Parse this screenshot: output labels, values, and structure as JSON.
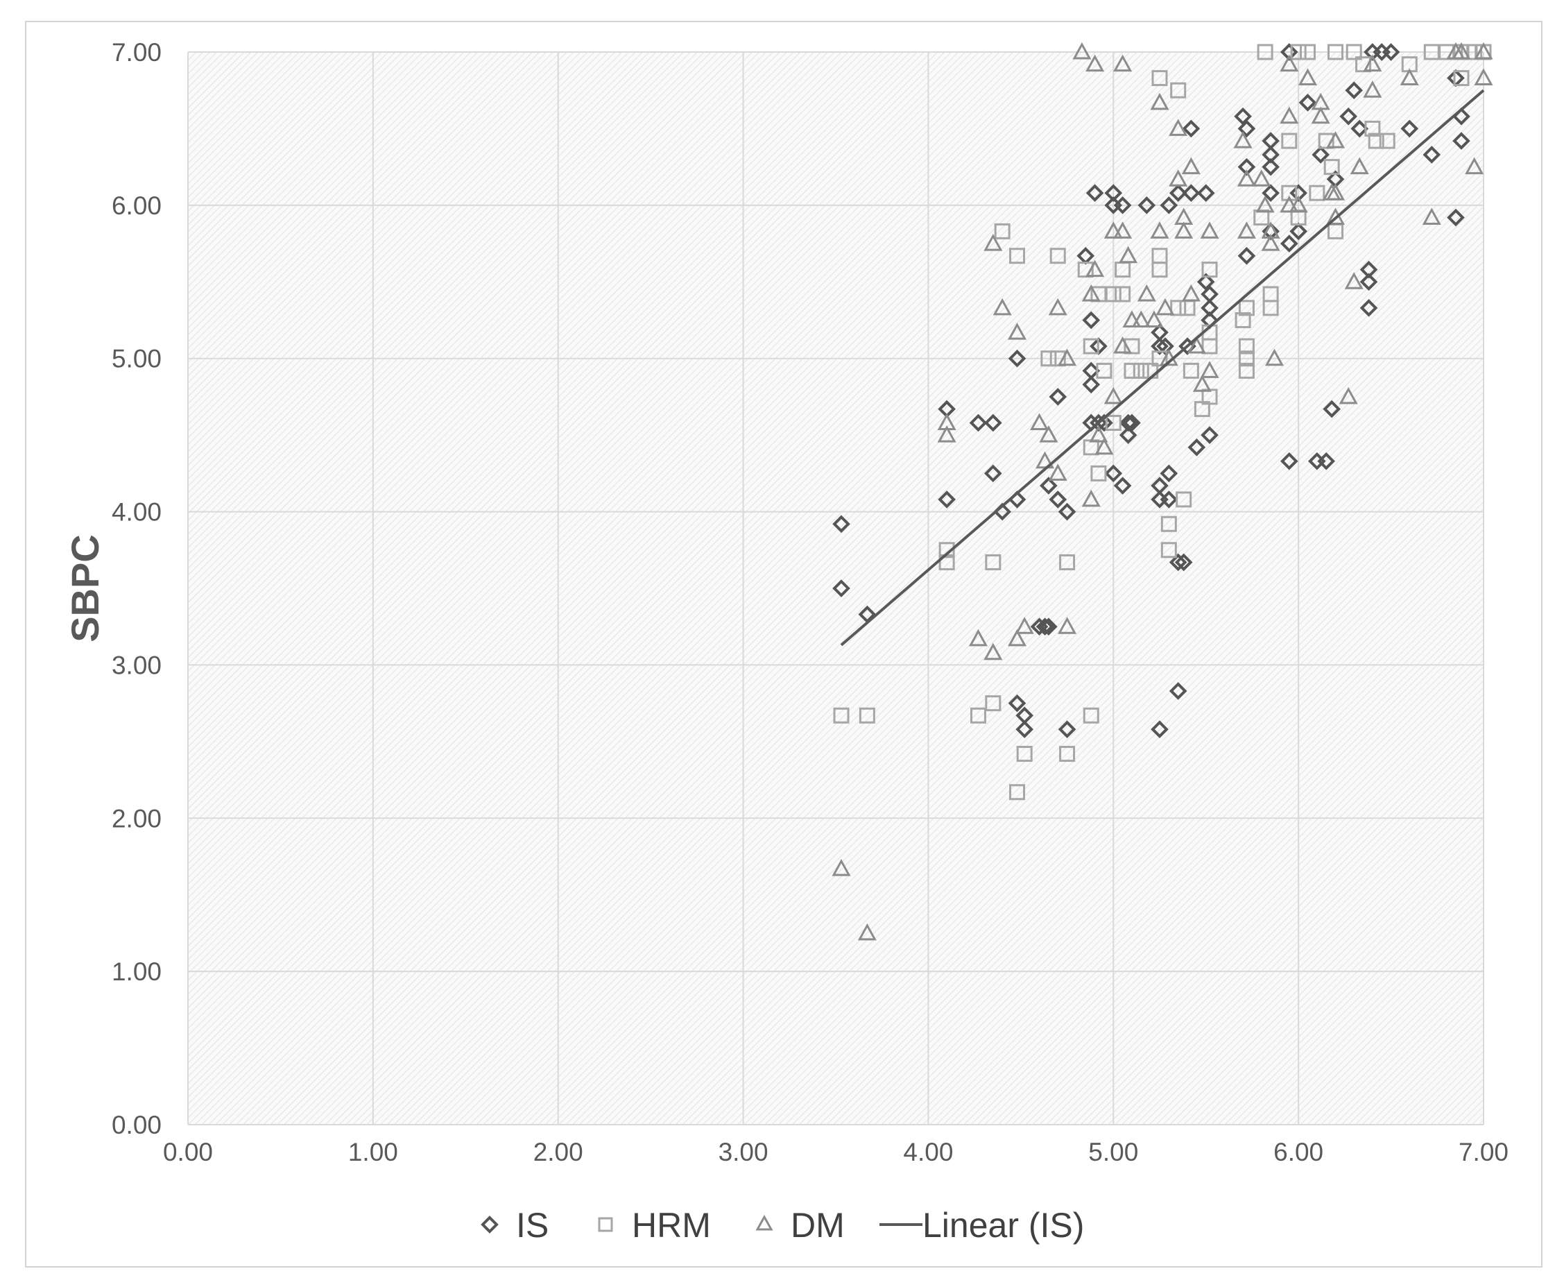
{
  "chart_data": {
    "type": "scatter",
    "title": "",
    "xlabel": "",
    "ylabel": "SBPC",
    "xlim": [
      0,
      7
    ],
    "ylim": [
      0,
      7
    ],
    "xticks": [
      "0.00",
      "1.00",
      "2.00",
      "3.00",
      "4.00",
      "5.00",
      "6.00",
      "7.00"
    ],
    "yticks": [
      "0.00",
      "1.00",
      "2.00",
      "3.00",
      "4.00",
      "5.00",
      "6.00",
      "7.00"
    ],
    "grid": true,
    "legend_position": "bottom",
    "series": [
      {
        "name": "IS",
        "marker": "diamond",
        "color": "#555555",
        "points": [
          [
            3.53,
            3.92
          ],
          [
            3.53,
            3.5
          ],
          [
            3.67,
            3.33
          ],
          [
            4.1,
            4.67
          ],
          [
            4.1,
            4.08
          ],
          [
            4.27,
            4.58
          ],
          [
            4.35,
            4.58
          ],
          [
            4.35,
            4.25
          ],
          [
            4.4,
            4.0
          ],
          [
            4.48,
            5.0
          ],
          [
            4.48,
            4.08
          ],
          [
            4.48,
            2.75
          ],
          [
            4.52,
            2.67
          ],
          [
            4.52,
            2.58
          ],
          [
            4.6,
            3.25
          ],
          [
            4.63,
            3.25
          ],
          [
            4.65,
            3.25
          ],
          [
            4.65,
            4.17
          ],
          [
            4.7,
            4.75
          ],
          [
            4.7,
            4.08
          ],
          [
            4.75,
            4.0
          ],
          [
            4.75,
            2.58
          ],
          [
            4.85,
            5.67
          ],
          [
            4.88,
            5.25
          ],
          [
            4.88,
            4.92
          ],
          [
            4.88,
            4.83
          ],
          [
            4.88,
            4.58
          ],
          [
            4.9,
            6.08
          ],
          [
            4.92,
            5.08
          ],
          [
            4.92,
            4.58
          ],
          [
            4.95,
            4.58
          ],
          [
            5.0,
            6.08
          ],
          [
            5.0,
            6.0
          ],
          [
            5.0,
            4.25
          ],
          [
            5.05,
            6.0
          ],
          [
            5.05,
            4.17
          ],
          [
            5.08,
            4.58
          ],
          [
            5.08,
            4.5
          ],
          [
            5.1,
            4.58
          ],
          [
            5.18,
            6.0
          ],
          [
            5.25,
            5.17
          ],
          [
            5.25,
            5.08
          ],
          [
            5.25,
            4.17
          ],
          [
            5.25,
            4.08
          ],
          [
            5.25,
            2.58
          ],
          [
            5.28,
            5.08
          ],
          [
            5.3,
            6.0
          ],
          [
            5.3,
            4.25
          ],
          [
            5.3,
            4.08
          ],
          [
            5.35,
            6.08
          ],
          [
            5.35,
            2.83
          ],
          [
            5.35,
            3.67
          ],
          [
            5.38,
            3.67
          ],
          [
            5.4,
            5.08
          ],
          [
            5.42,
            6.5
          ],
          [
            5.42,
            6.08
          ],
          [
            5.45,
            4.42
          ],
          [
            5.5,
            6.08
          ],
          [
            5.5,
            5.5
          ],
          [
            5.52,
            5.42
          ],
          [
            5.52,
            5.33
          ],
          [
            5.52,
            5.25
          ],
          [
            5.52,
            4.5
          ],
          [
            5.7,
            6.58
          ],
          [
            5.72,
            6.5
          ],
          [
            5.72,
            6.25
          ],
          [
            5.72,
            5.67
          ],
          [
            5.85,
            6.42
          ],
          [
            5.85,
            6.33
          ],
          [
            5.85,
            6.25
          ],
          [
            5.85,
            6.08
          ],
          [
            5.85,
            5.83
          ],
          [
            5.95,
            7.0
          ],
          [
            5.95,
            5.75
          ],
          [
            5.95,
            4.33
          ],
          [
            6.0,
            6.08
          ],
          [
            6.0,
            5.83
          ],
          [
            6.05,
            6.67
          ],
          [
            6.1,
            4.33
          ],
          [
            6.12,
            6.33
          ],
          [
            6.15,
            4.33
          ],
          [
            6.18,
            4.67
          ],
          [
            6.2,
            6.17
          ],
          [
            6.27,
            6.58
          ],
          [
            6.3,
            6.75
          ],
          [
            6.33,
            6.5
          ],
          [
            6.38,
            5.58
          ],
          [
            6.38,
            5.5
          ],
          [
            6.38,
            5.33
          ],
          [
            6.4,
            7.0
          ],
          [
            6.45,
            7.0
          ],
          [
            6.5,
            7.0
          ],
          [
            6.6,
            6.5
          ],
          [
            6.72,
            6.33
          ],
          [
            6.85,
            6.83
          ],
          [
            6.85,
            5.92
          ],
          [
            6.88,
            6.58
          ],
          [
            6.88,
            6.42
          ]
        ]
      },
      {
        "name": "HRM",
        "marker": "square",
        "color": "#a6a6a6",
        "points": [
          [
            3.53,
            2.67
          ],
          [
            3.67,
            2.67
          ],
          [
            4.1,
            3.75
          ],
          [
            4.1,
            3.67
          ],
          [
            4.27,
            2.67
          ],
          [
            4.35,
            3.67
          ],
          [
            4.35,
            2.75
          ],
          [
            4.4,
            5.83
          ],
          [
            4.48,
            5.67
          ],
          [
            4.48,
            2.17
          ],
          [
            4.52,
            2.42
          ],
          [
            4.65,
            5.0
          ],
          [
            4.7,
            5.67
          ],
          [
            4.7,
            5.0
          ],
          [
            4.75,
            3.67
          ],
          [
            4.75,
            2.42
          ],
          [
            4.85,
            5.58
          ],
          [
            4.88,
            5.08
          ],
          [
            4.88,
            2.67
          ],
          [
            4.88,
            4.42
          ],
          [
            4.92,
            4.25
          ],
          [
            4.92,
            5.42
          ],
          [
            4.95,
            4.92
          ],
          [
            5.0,
            5.42
          ],
          [
            5.0,
            4.58
          ],
          [
            5.05,
            5.58
          ],
          [
            5.05,
            5.42
          ],
          [
            5.1,
            5.08
          ],
          [
            5.1,
            4.92
          ],
          [
            5.15,
            4.92
          ],
          [
            5.2,
            4.92
          ],
          [
            5.25,
            6.83
          ],
          [
            5.25,
            5.67
          ],
          [
            5.25,
            5.58
          ],
          [
            5.25,
            5.0
          ],
          [
            5.3,
            3.92
          ],
          [
            5.3,
            3.75
          ],
          [
            5.35,
            6.75
          ],
          [
            5.35,
            5.33
          ],
          [
            5.38,
            4.08
          ],
          [
            5.4,
            5.33
          ],
          [
            5.42,
            4.92
          ],
          [
            5.48,
            4.67
          ],
          [
            5.52,
            5.58
          ],
          [
            5.52,
            5.17
          ],
          [
            5.52,
            5.08
          ],
          [
            5.52,
            4.75
          ],
          [
            5.7,
            5.25
          ],
          [
            5.72,
            5.33
          ],
          [
            5.72,
            5.08
          ],
          [
            5.72,
            5.0
          ],
          [
            5.72,
            4.92
          ],
          [
            5.8,
            5.92
          ],
          [
            5.82,
            7.0
          ],
          [
            5.85,
            5.42
          ],
          [
            5.85,
            5.33
          ],
          [
            5.95,
            6.42
          ],
          [
            5.95,
            6.08
          ],
          [
            6.0,
            7.0
          ],
          [
            6.0,
            5.92
          ],
          [
            6.05,
            7.0
          ],
          [
            6.1,
            6.08
          ],
          [
            6.15,
            6.42
          ],
          [
            6.18,
            6.25
          ],
          [
            6.2,
            5.83
          ],
          [
            6.2,
            7.0
          ],
          [
            6.3,
            7.0
          ],
          [
            6.35,
            6.92
          ],
          [
            6.4,
            6.5
          ],
          [
            6.42,
            6.42
          ],
          [
            6.48,
            6.42
          ],
          [
            6.6,
            6.92
          ],
          [
            6.72,
            7.0
          ],
          [
            6.8,
            7.0
          ],
          [
            6.88,
            7.0
          ],
          [
            6.88,
            6.83
          ],
          [
            6.92,
            7.0
          ],
          [
            6.95,
            7.0
          ],
          [
            7.0,
            7.0
          ]
        ]
      },
      {
        "name": "DM",
        "marker": "triangle",
        "color": "#8c8c8c",
        "points": [
          [
            3.53,
            1.67
          ],
          [
            3.67,
            1.25
          ],
          [
            4.1,
            4.58
          ],
          [
            4.1,
            4.5
          ],
          [
            4.27,
            3.17
          ],
          [
            4.35,
            3.08
          ],
          [
            4.35,
            5.75
          ],
          [
            4.4,
            5.33
          ],
          [
            4.48,
            5.17
          ],
          [
            4.48,
            3.17
          ],
          [
            4.52,
            3.25
          ],
          [
            4.6,
            4.58
          ],
          [
            4.63,
            4.33
          ],
          [
            4.65,
            4.5
          ],
          [
            4.7,
            5.33
          ],
          [
            4.7,
            4.25
          ],
          [
            4.75,
            5.0
          ],
          [
            4.75,
            3.25
          ],
          [
            4.83,
            7.0
          ],
          [
            4.88,
            5.42
          ],
          [
            4.88,
            4.08
          ],
          [
            4.9,
            6.92
          ],
          [
            4.9,
            5.58
          ],
          [
            4.92,
            4.5
          ],
          [
            4.95,
            4.42
          ],
          [
            5.0,
            5.83
          ],
          [
            5.0,
            4.75
          ],
          [
            5.05,
            6.92
          ],
          [
            5.05,
            5.83
          ],
          [
            5.05,
            5.08
          ],
          [
            5.08,
            5.67
          ],
          [
            5.1,
            5.25
          ],
          [
            5.15,
            5.25
          ],
          [
            5.18,
            5.42
          ],
          [
            5.22,
            5.25
          ],
          [
            5.25,
            6.67
          ],
          [
            5.25,
            5.83
          ],
          [
            5.28,
            5.33
          ],
          [
            5.3,
            5.0
          ],
          [
            5.35,
            6.5
          ],
          [
            5.35,
            6.17
          ],
          [
            5.38,
            5.83
          ],
          [
            5.38,
            5.92
          ],
          [
            5.42,
            6.25
          ],
          [
            5.42,
            5.42
          ],
          [
            5.45,
            5.08
          ],
          [
            5.48,
            4.83
          ],
          [
            5.52,
            5.83
          ],
          [
            5.52,
            4.92
          ],
          [
            5.7,
            6.42
          ],
          [
            5.72,
            6.17
          ],
          [
            5.72,
            5.83
          ],
          [
            5.8,
            6.17
          ],
          [
            5.82,
            6.0
          ],
          [
            5.85,
            5.83
          ],
          [
            5.85,
            5.75
          ],
          [
            5.87,
            5.0
          ],
          [
            5.95,
            6.92
          ],
          [
            5.95,
            6.58
          ],
          [
            5.95,
            6.0
          ],
          [
            6.0,
            6.0
          ],
          [
            6.05,
            6.83
          ],
          [
            6.12,
            6.67
          ],
          [
            6.12,
            6.58
          ],
          [
            6.18,
            6.08
          ],
          [
            6.2,
            6.42
          ],
          [
            6.2,
            6.08
          ],
          [
            6.2,
            5.92
          ],
          [
            6.27,
            4.75
          ],
          [
            6.3,
            5.5
          ],
          [
            6.33,
            6.25
          ],
          [
            6.4,
            6.92
          ],
          [
            6.4,
            6.75
          ],
          [
            6.6,
            6.83
          ],
          [
            6.72,
            5.92
          ],
          [
            6.85,
            7.0
          ],
          [
            6.88,
            7.0
          ],
          [
            6.95,
            6.25
          ],
          [
            7.0,
            6.83
          ],
          [
            7.0,
            7.0
          ]
        ]
      }
    ],
    "trendline": {
      "name": "Linear (IS)",
      "label": "Linear (IS)",
      "x": [
        3.53,
        7.0
      ],
      "y": [
        3.13,
        6.75
      ],
      "color": "#595959"
    }
  }
}
